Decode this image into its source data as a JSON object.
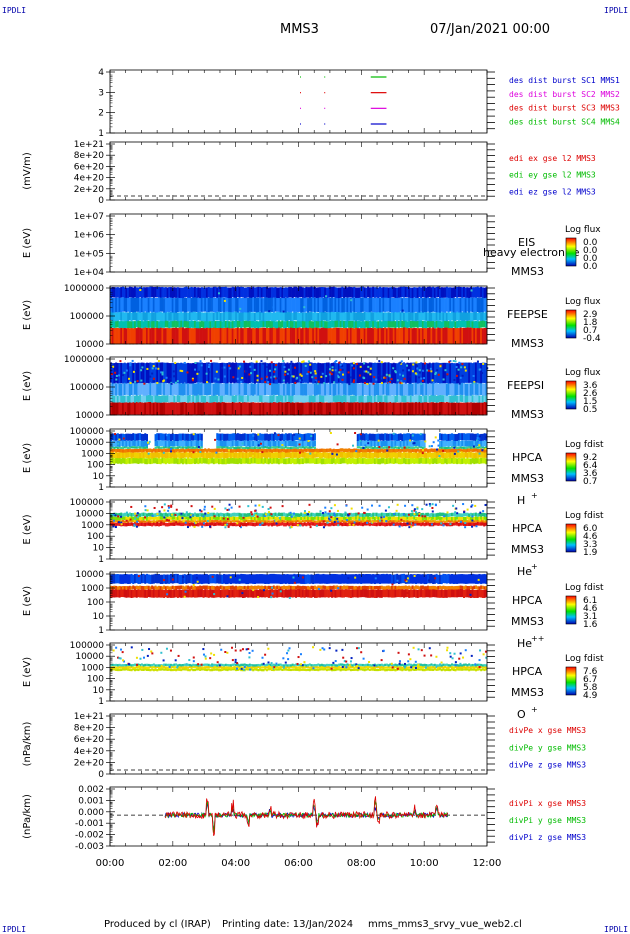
{
  "header": {
    "corner_tl": "IPDLI",
    "corner_tr": "IPDLI",
    "corner_bl": "IPDLI",
    "corner_br": "IPDLI",
    "spacecraft": "MMS3",
    "date": "07/Jan/2021 00:00"
  },
  "footer": {
    "produced": "Produced by cl (IRAP)",
    "printing": "Printing date: 13/Jan/2024",
    "file": "mms_mms3_srvy_vue_web2.cl"
  },
  "chart_data": [
    {
      "id": "burst",
      "type": "line",
      "ylabel": "",
      "yticks": [
        "1",
        "2",
        "3",
        "4"
      ],
      "legend": [
        {
          "text": "des dist burst SC1 MMS1",
          "color": "#0000cc"
        },
        {
          "text": "des dist burst SC2 MMS2",
          "color": "#dd00dd"
        },
        {
          "text": "des dist burst SC3 MMS3",
          "color": "#dd0000"
        },
        {
          "text": "des dist burst SC4 MMS4",
          "color": "#00bb00"
        }
      ],
      "series": [
        {
          "sc": 1,
          "color": "#0000cc",
          "intervals": [
            [
              6.05,
              6.08
            ],
            [
              6.82,
              6.85
            ],
            [
              8.3,
              8.8
            ]
          ]
        },
        {
          "sc": 2,
          "color": "#dd00dd",
          "intervals": [
            [
              6.05,
              6.08
            ],
            [
              6.82,
              6.85
            ],
            [
              8.3,
              8.8
            ]
          ]
        },
        {
          "sc": 3,
          "color": "#dd0000",
          "intervals": [
            [
              6.05,
              6.08
            ],
            [
              6.82,
              6.85
            ],
            [
              8.3,
              8.8
            ]
          ]
        },
        {
          "sc": 4,
          "color": "#00bb00",
          "intervals": [
            [
              6.05,
              6.08
            ],
            [
              6.82,
              6.85
            ],
            [
              8.3,
              8.8
            ]
          ]
        }
      ]
    },
    {
      "id": "edi",
      "type": "line",
      "ylabel": "(mV/m)",
      "yticks": [
        "0",
        "2e+20",
        "4e+20",
        "6e+20",
        "8e+20",
        "1e+21"
      ],
      "legend": [
        {
          "text": "edi ex gse l2 MMS3",
          "color": "#dd0000"
        },
        {
          "text": "edi ey gse l2 MMS3",
          "color": "#00bb00"
        },
        {
          "text": "edi ez gse l2 MMS3",
          "color": "#0000cc"
        }
      ]
    },
    {
      "id": "eis",
      "type": "heatmap",
      "ylabel": "E (eV)",
      "yticks": [
        "1e+04",
        "1e+05",
        "1e+06",
        "1e+07"
      ],
      "labels": [
        "EIS",
        "MMS3"
      ],
      "overlay_text": "heavy electron te",
      "colorbar": {
        "title": "Log flux",
        "ticks": [
          "0.0",
          "0.0",
          "0.0",
          "0.0"
        ]
      },
      "description": "empty"
    },
    {
      "id": "feeps_e",
      "type": "heatmap",
      "ylabel": "E (eV)",
      "yticks": [
        "10000",
        "100000",
        "1000000"
      ],
      "labels": [
        "FEEPSE",
        "MMS3"
      ],
      "colorbar": {
        "title": "Log flux",
        "ticks": [
          "2.9",
          "1.8",
          "0.7",
          "-0.4"
        ]
      },
      "x_range": [
        0,
        12
      ],
      "bands": [
        {
          "emin_frac": 0.0,
          "emax_frac": 0.28,
          "colors": [
            "#d01010",
            "#f04000"
          ]
        },
        {
          "emin_frac": 0.28,
          "emax_frac": 0.4,
          "colors": [
            "#10c060",
            "#00c0b0"
          ]
        },
        {
          "emin_frac": 0.4,
          "emax_frac": 0.55,
          "colors": [
            "#10a0e0",
            "#20b8f0"
          ]
        },
        {
          "emin_frac": 0.55,
          "emax_frac": 0.8,
          "colors": [
            "#0060e0",
            "#1a80ff"
          ]
        },
        {
          "emin_frac": 0.8,
          "emax_frac": 0.98,
          "colors": [
            "#0010c0",
            "#0030e0"
          ]
        }
      ],
      "speckle": 0.015
    },
    {
      "id": "feeps_i",
      "type": "heatmap",
      "ylabel": "E (eV)",
      "yticks": [
        "10000",
        "100000",
        "1000000"
      ],
      "labels": [
        "FEEPSI",
        "MMS3"
      ],
      "colorbar": {
        "title": "Log flux",
        "ticks": [
          "3.6",
          "2.6",
          "1.5",
          "0.5"
        ]
      },
      "x_range": [
        0,
        12
      ],
      "bands": [
        {
          "emin_frac": 0.0,
          "emax_frac": 0.22,
          "colors": [
            "#b00000",
            "#d01010"
          ]
        },
        {
          "emin_frac": 0.22,
          "emax_frac": 0.34,
          "colors": [
            "#30c0d0",
            "#70d0f0"
          ]
        },
        {
          "emin_frac": 0.34,
          "emax_frac": 0.55,
          "colors": [
            "#2090f0",
            "#60b0ff"
          ]
        },
        {
          "emin_frac": 0.55,
          "emax_frac": 0.9,
          "colors": [
            "#0010c0",
            "#0040e0"
          ]
        }
      ],
      "speckle": 0.35
    },
    {
      "id": "hpca_h",
      "type": "heatmap",
      "ylabel": "E (eV)",
      "yticks": [
        "1",
        "10",
        "100",
        "1000",
        "10000",
        "100000"
      ],
      "labels": [
        "HPCA",
        "MMS3",
        "H",
        "+"
      ],
      "colorbar": {
        "title": "Log fdist",
        "ticks": [
          "9.2",
          "6.4",
          "3.6",
          "0.7"
        ]
      },
      "x_range": [
        0,
        12
      ],
      "bands": [
        {
          "emin_frac": 0.4,
          "emax_frac": 0.5,
          "colors": [
            "#a0e000",
            "#c0f000"
          ]
        },
        {
          "emin_frac": 0.5,
          "emax_frac": 0.6,
          "colors": [
            "#f0c000",
            "#f0d000"
          ]
        },
        {
          "emin_frac": 0.6,
          "emax_frac": 0.66,
          "colors": [
            "#f07000",
            "#f08000"
          ]
        },
        {
          "emin_frac": 0.66,
          "emax_frac": 0.7,
          "colors": [
            "#20c080",
            "#40d090"
          ]
        },
        {
          "emin_frac": 0.7,
          "emax_frac": 0.8,
          "colors": [
            "#1a90f0",
            "#40b0ff"
          ]
        },
        {
          "emin_frac": 0.8,
          "emax_frac": 0.92,
          "colors": [
            "#0030d0",
            "#0060f0"
          ]
        }
      ],
      "gaps": [
        [
          1.15,
          1.45
        ],
        [
          2.9,
          3.4
        ],
        [
          6.5,
          7.9
        ],
        [
          10.0,
          10.5
        ]
      ],
      "speckle": 0.1
    },
    {
      "id": "hpca_he",
      "type": "heatmap",
      "ylabel": "E (eV)",
      "yticks": [
        "1",
        "10",
        "100",
        "1000",
        "10000",
        "100000"
      ],
      "labels": [
        "HPCA",
        "MMS3",
        "He",
        "+"
      ],
      "colorbar": {
        "title": "Log fdist",
        "ticks": [
          "6.0",
          "4.6",
          "3.3",
          "1.9"
        ]
      },
      "x_range": [
        0,
        12
      ],
      "bands": [
        {
          "emin_frac": 0.56,
          "emax_frac": 0.62,
          "colors": [
            "#d81010",
            "#e82020"
          ]
        },
        {
          "emin_frac": 0.62,
          "emax_frac": 0.66,
          "colors": [
            "#f07000",
            "#f0a000"
          ]
        },
        {
          "emin_frac": 0.66,
          "emax_frac": 0.72,
          "colors": [
            "#80e000",
            "#f0e000"
          ]
        },
        {
          "emin_frac": 0.72,
          "emax_frac": 0.78,
          "colors": [
            "#20c080",
            "#40d0c0"
          ]
        }
      ],
      "speckle": 0.3
    },
    {
      "id": "hpca_hepp",
      "type": "heatmap",
      "ylabel": "E (eV)",
      "yticks": [
        "1",
        "10",
        "100",
        "1000",
        "10000"
      ],
      "labels": [
        "HPCA",
        "MMS3",
        "He",
        "++"
      ],
      "colorbar": {
        "title": "Log fdist",
        "ticks": [
          "6.1",
          "4.6",
          "3.1",
          "1.6"
        ]
      },
      "x_range": [
        0,
        12
      ],
      "bands": [
        {
          "emin_frac": 0.56,
          "emax_frac": 0.7,
          "colors": [
            "#d01010",
            "#e02010"
          ]
        },
        {
          "emin_frac": 0.7,
          "emax_frac": 0.76,
          "colors": [
            "#f08000",
            "#e04000"
          ]
        },
        {
          "emin_frac": 0.8,
          "emax_frac": 0.96,
          "colors": [
            "#0030d0",
            "#0050f0"
          ]
        }
      ],
      "top_intervals": [
        [
          0.3,
          0.65
        ],
        [
          2.65,
          3.1
        ],
        [
          3.6,
          6.2
        ],
        [
          6.5,
          8.95
        ],
        [
          9.55,
          10.1
        ],
        [
          10.8,
          12.0
        ]
      ],
      "speckle": 0.05
    },
    {
      "id": "hpca_o",
      "type": "heatmap",
      "ylabel": "E (eV)",
      "yticks": [
        "1",
        "10",
        "100",
        "1000",
        "10000",
        "100000"
      ],
      "labels": [
        "HPCA",
        "MMS3",
        "O",
        "+"
      ],
      "colorbar": {
        "title": "Log fdist",
        "ticks": [
          "7.6",
          "6.7",
          "5.8",
          "4.9"
        ]
      },
      "x_range": [
        0,
        12
      ],
      "bands": [
        {
          "emin_frac": 0.52,
          "emax_frac": 0.56,
          "colors": [
            "#d0e000",
            "#c0e000"
          ]
        },
        {
          "emin_frac": 0.56,
          "emax_frac": 0.6,
          "colors": [
            "#f0d000",
            "#f0e000"
          ]
        },
        {
          "emin_frac": 0.6,
          "emax_frac": 0.64,
          "colors": [
            "#20c0a0",
            "#40d0c0"
          ]
        }
      ],
      "speckle": 0.2
    },
    {
      "id": "divpe",
      "type": "line",
      "ylabel": "(nPa/km)",
      "yticks": [
        "0",
        "2e+20",
        "4e+20",
        "6e+20",
        "8e+20",
        "1e+21"
      ],
      "legend": [
        {
          "text": "divPe x gse MMS3",
          "color": "#dd0000"
        },
        {
          "text": "divPe y gse MMS3",
          "color": "#00bb00"
        },
        {
          "text": "divPe z gse MMS3",
          "color": "#0000cc"
        }
      ]
    },
    {
      "id": "divpi",
      "type": "line",
      "ylabel": "(nPa/km)",
      "yticks": [
        "-0.003",
        "-0.002",
        "-0.001",
        "0.000",
        "0.001",
        "0.002"
      ],
      "ylim": [
        -0.0033,
        0.003
      ],
      "x_data_range": [
        1.75,
        10.75
      ],
      "legend": [
        {
          "text": "divPi x gse MMS3",
          "color": "#dd0000"
        },
        {
          "text": "divPi y gse MMS3",
          "color": "#00bb00"
        },
        {
          "text": "divPi z gse MMS3",
          "color": "#0000cc"
        }
      ],
      "spikes": [
        {
          "x": 3.1,
          "amp": 0.0022
        },
        {
          "x": 3.3,
          "amp": -0.0025
        },
        {
          "x": 3.9,
          "amp": 0.0014
        },
        {
          "x": 4.4,
          "amp": -0.0012
        },
        {
          "x": 5.1,
          "amp": 0.0009
        },
        {
          "x": 6.5,
          "amp": 0.0018
        },
        {
          "x": 6.6,
          "amp": -0.0015
        },
        {
          "x": 8.45,
          "amp": 0.0024
        },
        {
          "x": 8.55,
          "amp": -0.001
        },
        {
          "x": 9.7,
          "amp": 0.0008
        },
        {
          "x": 10.4,
          "amp": 0.0012
        }
      ]
    }
  ],
  "x_axis": {
    "range": [
      0,
      12
    ],
    "tick_labels": [
      "00:00",
      "02:00",
      "04:00",
      "06:00",
      "08:00",
      "10:00",
      "12:00"
    ]
  }
}
